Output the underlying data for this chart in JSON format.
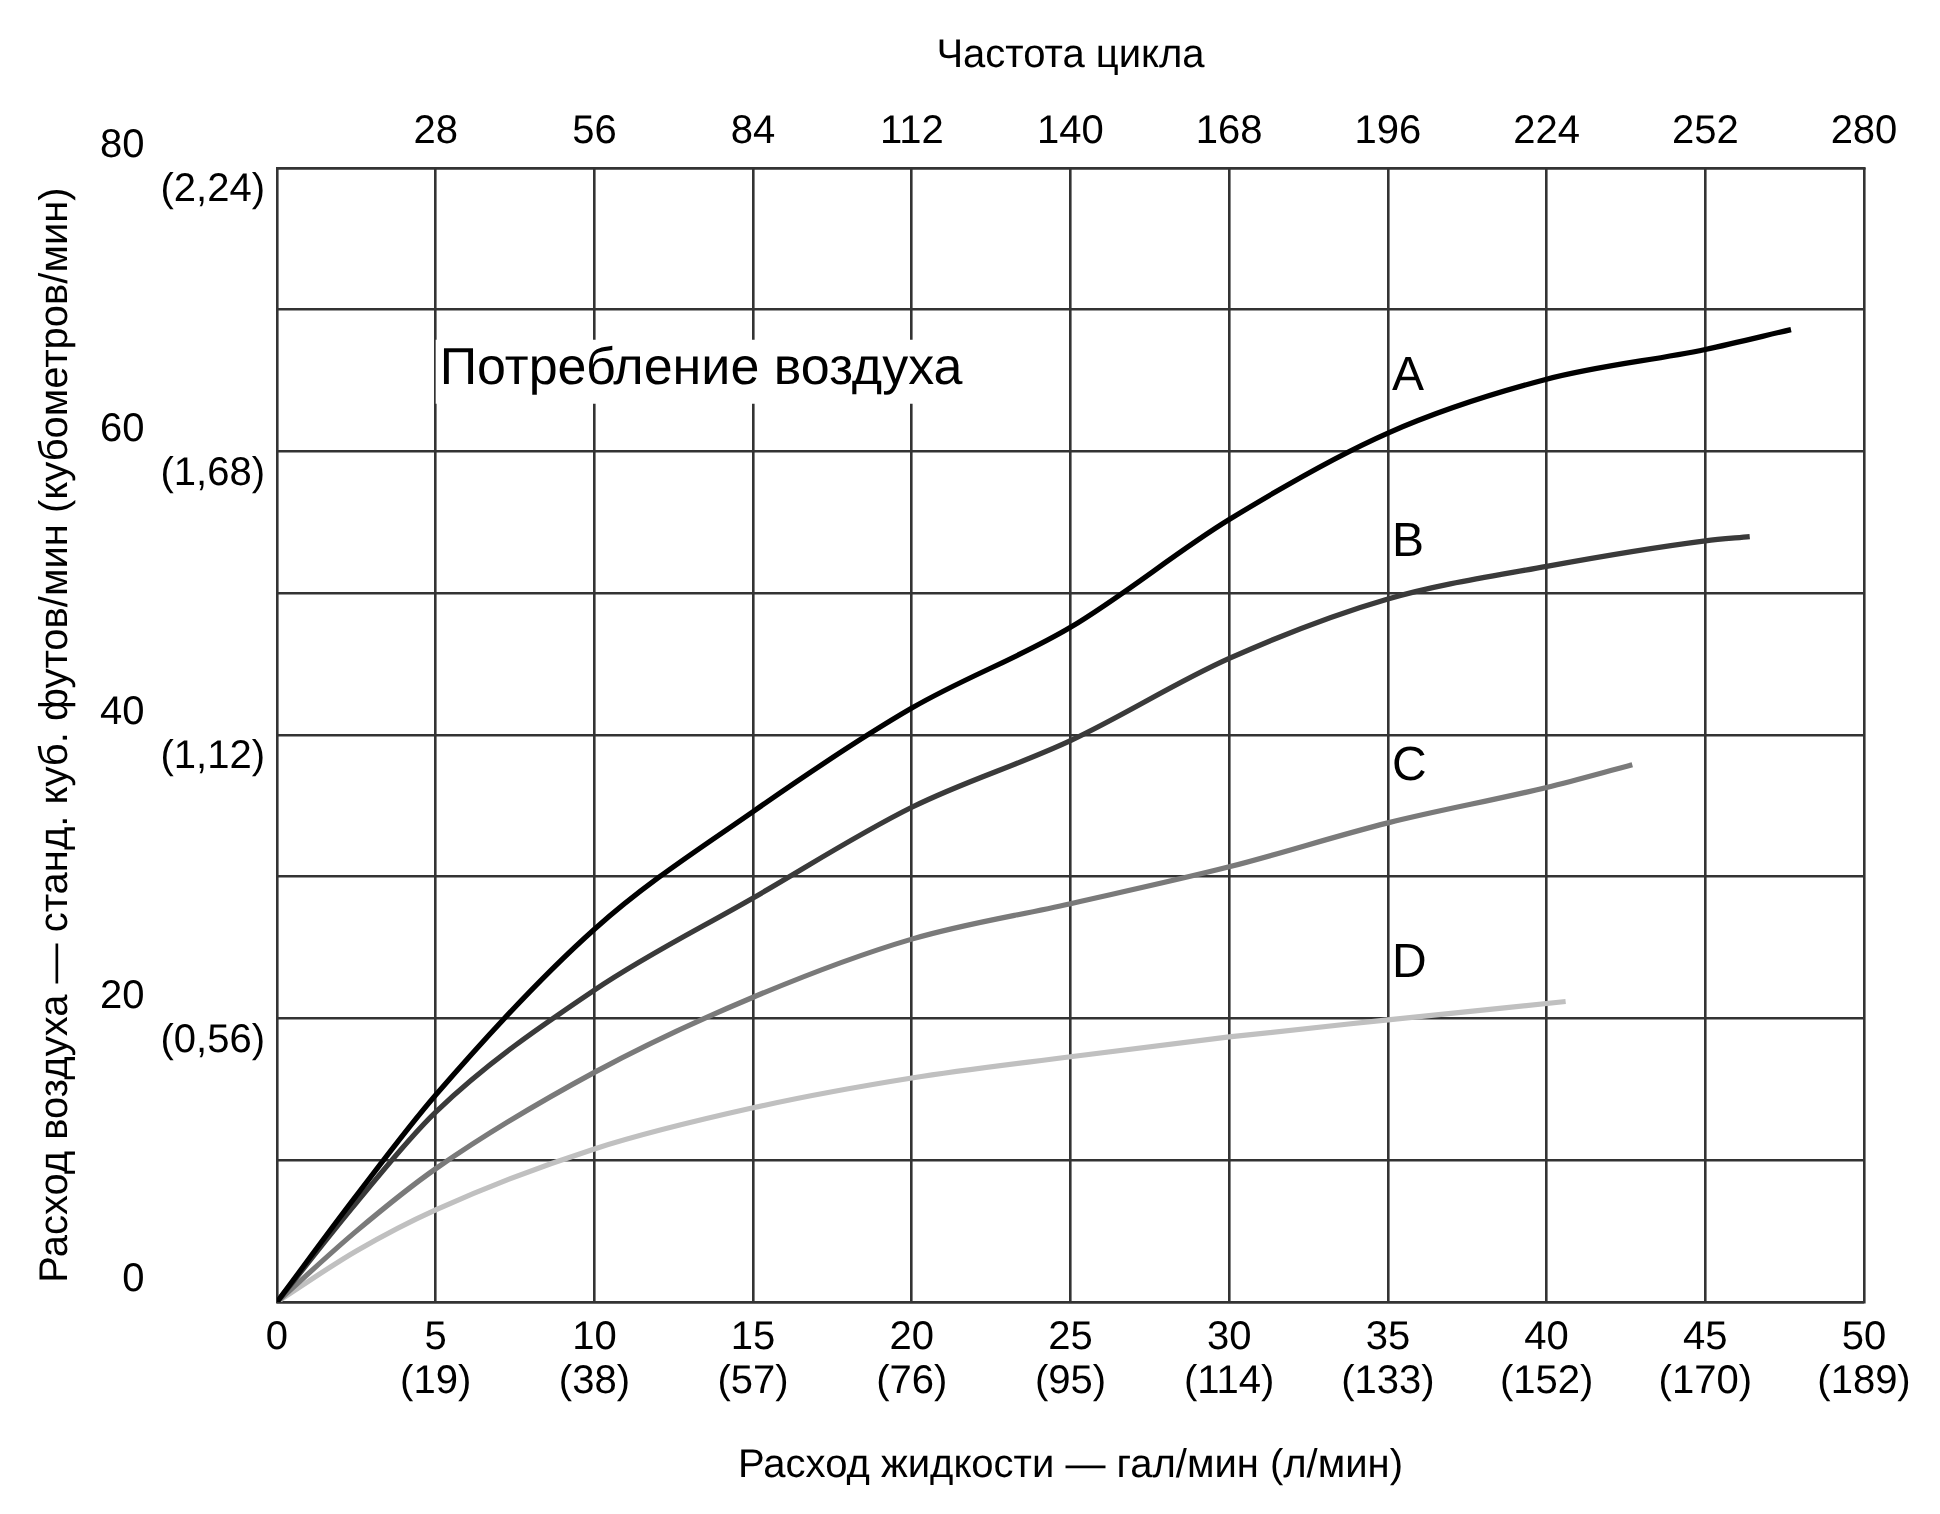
{
  "chart_data": {
    "type": "line",
    "xlabel": "Расход жидкости — гал/мин (л/мин)",
    "ylabel": "Расход воздуха — станд. куб. футов/мин (кубометров/мин)",
    "x2label": "Частота цикла",
    "annotations": [
      "Потребление воздуха",
      "(19)",
      "(38)",
      "(57)",
      "(76)",
      "(95)",
      "(114)",
      "(133)",
      "(152)",
      "(170)",
      "(189)"
    ],
    "xlim": [
      0,
      50
    ],
    "xticks": [
      0,
      5,
      10,
      15,
      20,
      25,
      30,
      35,
      40,
      45,
      50
    ],
    "x2lim": [
      0,
      280
    ],
    "x2ticks": [
      28,
      56,
      84,
      112,
      140,
      168,
      196,
      224,
      252,
      280
    ],
    "ylim": [
      0,
      80
    ],
    "yticks": [
      0,
      {
        "value": 10,
        "label": null
      },
      20,
      {
        "value": 30,
        "label": null
      },
      40,
      {
        "value": 50,
        "label": null
      },
      60,
      {
        "value": 70,
        "label": null
      },
      80
    ],
    "y2lim": [
      0,
      2.24
    ],
    "y2ticks": [
      {
        "value": 0.56,
        "label": "(0,56)"
      },
      {
        "value": 1.12,
        "label": "(1,12)"
      },
      {
        "value": 1.68,
        "label": "(1,68)"
      },
      {
        "value": 2.24,
        "label": "(2,24)"
      }
    ],
    "grid": true,
    "legend": false,
    "marker": "none",
    "series": [
      {
        "name": "A",
        "color": "#000000",
        "x": [
          0,
          2.5,
          5,
          10,
          15,
          20,
          25,
          30,
          35,
          40,
          45,
          47.7
        ],
        "values": [
          0,
          7.5,
          14.6,
          26.3,
          34.6,
          41.9,
          47.6,
          55.2,
          61.3,
          65.1,
          67.2,
          68.6
        ]
      },
      {
        "name": "B",
        "color": "#3a3a3a",
        "x": [
          0,
          2.5,
          5,
          10,
          15,
          20,
          25,
          30,
          35,
          40,
          45,
          46.4
        ],
        "values": [
          0,
          7,
          13.4,
          22,
          28.5,
          34.9,
          39.6,
          45.4,
          49.6,
          51.9,
          53.7,
          54
        ]
      },
      {
        "name": "C",
        "color": "#7a7a7a",
        "x": [
          0,
          2.5,
          5,
          10,
          15,
          20,
          25,
          30,
          35,
          40,
          42.7
        ],
        "values": [
          0,
          5,
          9.4,
          16.2,
          21.5,
          25.6,
          28.1,
          30.7,
          33.8,
          36.3,
          37.9
        ]
      },
      {
        "name": "D",
        "color": "#c0c0c0",
        "x": [
          0,
          2.5,
          5,
          10,
          15,
          20,
          25,
          30,
          35,
          40.6
        ],
        "values": [
          0,
          3.6,
          6.5,
          10.8,
          13.7,
          15.8,
          17.3,
          18.7,
          19.9,
          21.2
        ]
      }
    ]
  }
}
